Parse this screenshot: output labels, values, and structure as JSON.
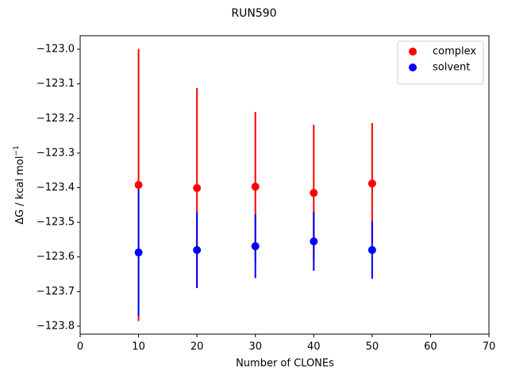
{
  "chart_data": {
    "type": "errorbar-scatter",
    "title": "RUN590",
    "xlabel": "Number of CLONEs",
    "ylabel": "ΔG / kcal mol",
    "ylabel_sup": "−1",
    "x": [
      10,
      20,
      30,
      40,
      50
    ],
    "series": [
      {
        "name": "complex",
        "color": "#ff0000",
        "values": [
          -123.392,
          -123.401,
          -123.397,
          -123.415,
          -123.388
        ],
        "errors": [
          0.393,
          0.289,
          0.216,
          0.197,
          0.175
        ]
      },
      {
        "name": "solvent",
        "color": "#0000ff",
        "values": [
          -123.587,
          -123.58,
          -123.569,
          -123.555,
          -123.58
        ],
        "errors": [
          0.183,
          0.11,
          0.092,
          0.085,
          0.083
        ]
      }
    ],
    "xlim": [
      0,
      70
    ],
    "xticks": [
      0,
      10,
      20,
      30,
      40,
      50,
      60,
      70
    ],
    "ylim": [
      -123.823,
      -122.961
    ],
    "yticks": [
      {
        "value": -123.8,
        "label": "−123.8"
      },
      {
        "value": -123.7,
        "label": "−123.7"
      },
      {
        "value": -123.6,
        "label": "−123.6"
      },
      {
        "value": -123.5,
        "label": "−123.5"
      },
      {
        "value": -123.4,
        "label": "−123.4"
      },
      {
        "value": -123.3,
        "label": "−123.3"
      },
      {
        "value": -123.2,
        "label": "−123.2"
      },
      {
        "value": -123.1,
        "label": "−123.1"
      },
      {
        "value": -123.0,
        "label": "−123.0"
      }
    ],
    "legend": "upper right"
  }
}
